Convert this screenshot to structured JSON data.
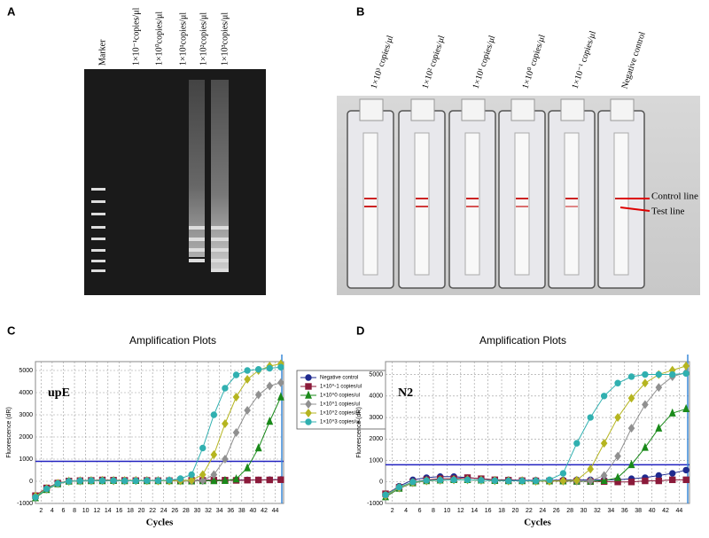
{
  "panels": {
    "A": {
      "letter": "A",
      "lanes": [
        "Marker",
        "1×10⁻¹copies/μl",
        "1×10⁰copies/μl",
        "1×10¹copies/μl",
        "1×10²copies/μl",
        "1×10³copies/μl"
      ]
    },
    "B": {
      "letter": "B",
      "labels": [
        "1×10³ copies/μl",
        "1×10² copies/μl",
        "1×10¹ copies/μl",
        "1×10⁰ copies/μl",
        "1×10⁻¹ copies/μl",
        "Negative control"
      ],
      "control_line": "Control line",
      "test_line": "Test line"
    }
  },
  "chart_data": [
    {
      "type": "line",
      "panel": "C",
      "title": "Amplification Plots",
      "annotation": "upE",
      "x_label": "Cycles",
      "y_label": "Fluorescence (dR)",
      "x": [
        1,
        3,
        5,
        7,
        9,
        11,
        13,
        15,
        17,
        19,
        21,
        23,
        25,
        27,
        29,
        31,
        33,
        35,
        37,
        39,
        41,
        43,
        45
      ],
      "xlim": [
        1,
        45.5
      ],
      "xticks": [
        2,
        4,
        6,
        8,
        10,
        12,
        14,
        16,
        18,
        20,
        22,
        24,
        26,
        28,
        30,
        32,
        34,
        36,
        38,
        40,
        42,
        44
      ],
      "ylim": [
        -1000,
        5400
      ],
      "yticks": [
        -1000,
        0,
        1000,
        2000,
        3000,
        4000,
        5000
      ],
      "grid": true,
      "legend": true,
      "threshold": 900,
      "series": [
        {
          "name": "Negative control",
          "color": "#1f2a8f",
          "marker": "circle",
          "values": [
            -700,
            -350,
            -100,
            0,
            20,
            30,
            30,
            40,
            30,
            40,
            30,
            40,
            30,
            40,
            40,
            50,
            50,
            50,
            60,
            60,
            60,
            70,
            80
          ]
        },
        {
          "name": "1×10^-1 copies/ul",
          "color": "#8b1a3a",
          "marker": "square",
          "values": [
            -650,
            -300,
            -80,
            10,
            30,
            40,
            60,
            50,
            40,
            30,
            40,
            30,
            30,
            40,
            40,
            40,
            50,
            50,
            40,
            50,
            60,
            60,
            70
          ]
        },
        {
          "name": "1×10^0 copies/ul",
          "color": "#1a8a1a",
          "marker": "triangle",
          "values": [
            -750,
            -380,
            -120,
            0,
            10,
            20,
            20,
            30,
            20,
            30,
            20,
            20,
            20,
            10,
            10,
            20,
            20,
            30,
            100,
            600,
            1500,
            2700,
            3800
          ]
        },
        {
          "name": "1×10^1 copies/ul",
          "color": "#909090",
          "marker": "diamond",
          "values": [
            -700,
            -360,
            -110,
            0,
            10,
            20,
            30,
            20,
            20,
            30,
            30,
            20,
            20,
            20,
            20,
            30,
            300,
            1000,
            2200,
            3200,
            3900,
            4300,
            4450
          ]
        },
        {
          "name": "1×10^2 copies/ul",
          "color": "#b5b520",
          "marker": "diamond",
          "values": [
            -680,
            -330,
            -90,
            0,
            20,
            30,
            40,
            30,
            30,
            30,
            30,
            20,
            20,
            30,
            50,
            300,
            1200,
            2600,
            3800,
            4600,
            5000,
            5200,
            5300
          ]
        },
        {
          "name": "1×10^3 copies/ul",
          "color": "#30b0b0",
          "marker": "circle",
          "values": [
            -720,
            -340,
            -100,
            0,
            20,
            30,
            30,
            30,
            20,
            20,
            30,
            30,
            50,
            120,
            300,
            1500,
            3000,
            4200,
            4800,
            5000,
            5050,
            5100,
            5150
          ]
        }
      ]
    },
    {
      "type": "line",
      "panel": "D",
      "title": "Amplification Plots",
      "annotation": "N2",
      "x_label": "Cycles",
      "y_label": "Fluorescence (dR)",
      "x": [
        1,
        3,
        5,
        7,
        9,
        11,
        13,
        15,
        17,
        19,
        21,
        23,
        25,
        27,
        29,
        31,
        33,
        35,
        37,
        39,
        41,
        43,
        45
      ],
      "xlim": [
        1,
        45.5
      ],
      "xticks": [
        2,
        4,
        6,
        8,
        10,
        12,
        14,
        16,
        18,
        20,
        22,
        24,
        26,
        28,
        30,
        32,
        34,
        36,
        38,
        40,
        42,
        44
      ],
      "ylim": [
        -1000,
        5600
      ],
      "yticks": [
        -1000,
        0,
        1000,
        2000,
        3000,
        4000,
        5000
      ],
      "grid": true,
      "legend": false,
      "threshold": 800,
      "series": [
        {
          "color": "#1f2a8f",
          "marker": "circle",
          "values": [
            -600,
            -200,
            100,
            200,
            250,
            250,
            200,
            150,
            100,
            100,
            80,
            80,
            80,
            90,
            100,
            100,
            100,
            100,
            150,
            200,
            300,
            400,
            550
          ]
        },
        {
          "color": "#8b1a3a",
          "marker": "square",
          "values": [
            -550,
            -250,
            0,
            100,
            150,
            150,
            200,
            150,
            100,
            80,
            60,
            50,
            50,
            40,
            30,
            20,
            20,
            0,
            0,
            50,
            50,
            100,
            100
          ]
        },
        {
          "color": "#1a8a1a",
          "marker": "triangle",
          "values": [
            -700,
            -300,
            -50,
            50,
            80,
            100,
            100,
            80,
            60,
            50,
            50,
            40,
            40,
            40,
            30,
            30,
            60,
            200,
            800,
            1600,
            2500,
            3200,
            3400
          ]
        },
        {
          "color": "#909090",
          "marker": "diamond",
          "values": [
            -650,
            -280,
            -40,
            50,
            80,
            100,
            100,
            80,
            60,
            50,
            50,
            40,
            40,
            40,
            40,
            50,
            300,
            1200,
            2500,
            3600,
            4400,
            4900,
            5100
          ]
        },
        {
          "color": "#b5b520",
          "marker": "diamond",
          "values": [
            -620,
            -260,
            -20,
            60,
            90,
            100,
            100,
            80,
            60,
            50,
            50,
            40,
            40,
            50,
            80,
            600,
            1800,
            3000,
            3900,
            4600,
            5000,
            5200,
            5400
          ]
        },
        {
          "color": "#30b0b0",
          "marker": "circle",
          "values": [
            -600,
            -240,
            0,
            70,
            90,
            100,
            100,
            80,
            60,
            50,
            50,
            50,
            100,
            400,
            1800,
            3000,
            4000,
            4600,
            4900,
            5000,
            5000,
            5000,
            5050
          ]
        }
      ]
    }
  ]
}
